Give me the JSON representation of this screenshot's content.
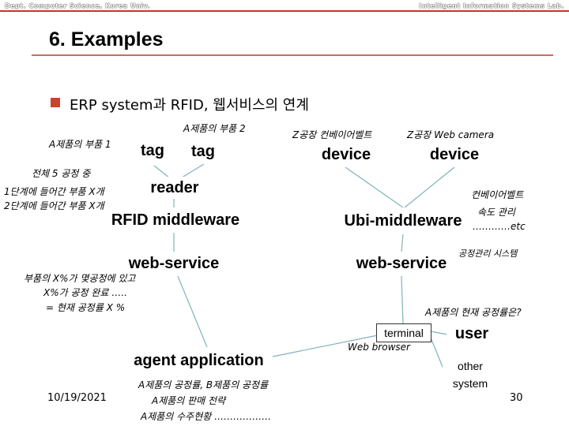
{
  "header": {
    "left": "Dept. Computer Science, Korea Univ.",
    "right": "Intelligent Information Systems Lab."
  },
  "title": "6. Examples",
  "bullet": "ERP system과 RFID, 웹서비스의 연계",
  "nodes": [
    "tag",
    "tag",
    "reader",
    "RFID middleware",
    "web-service",
    "agent application",
    "device",
    "device",
    "Ubi-middleware",
    "web-service",
    "terminal",
    "user",
    "other system"
  ],
  "notes": [
    "A제품의 부품 2",
    "A제품의 부품 1",
    "전체 5 공정 중",
    "1단계에 들어간 부품 X개",
    "2단계에 들어간 부품 X개",
    "부품의 X%가 몇공정에 있고",
    "X%가 공정 완료 …..",
    "= 현재 공정률 X %",
    "Z공장 컨베이어벨트",
    "Z공장 Web camera",
    "컨베이어벨트",
    "속도 관리",
    "…………etc",
    "공정관리 시스템",
    "A제품의 현재 공정률은?",
    "Web browser",
    "A제품의 공정률, B제품의 공정률",
    "A제품의 판매 전략",
    "A제품의 수주현황 ………………"
  ],
  "footer": {
    "date": "10/19/2021",
    "page": "30"
  }
}
